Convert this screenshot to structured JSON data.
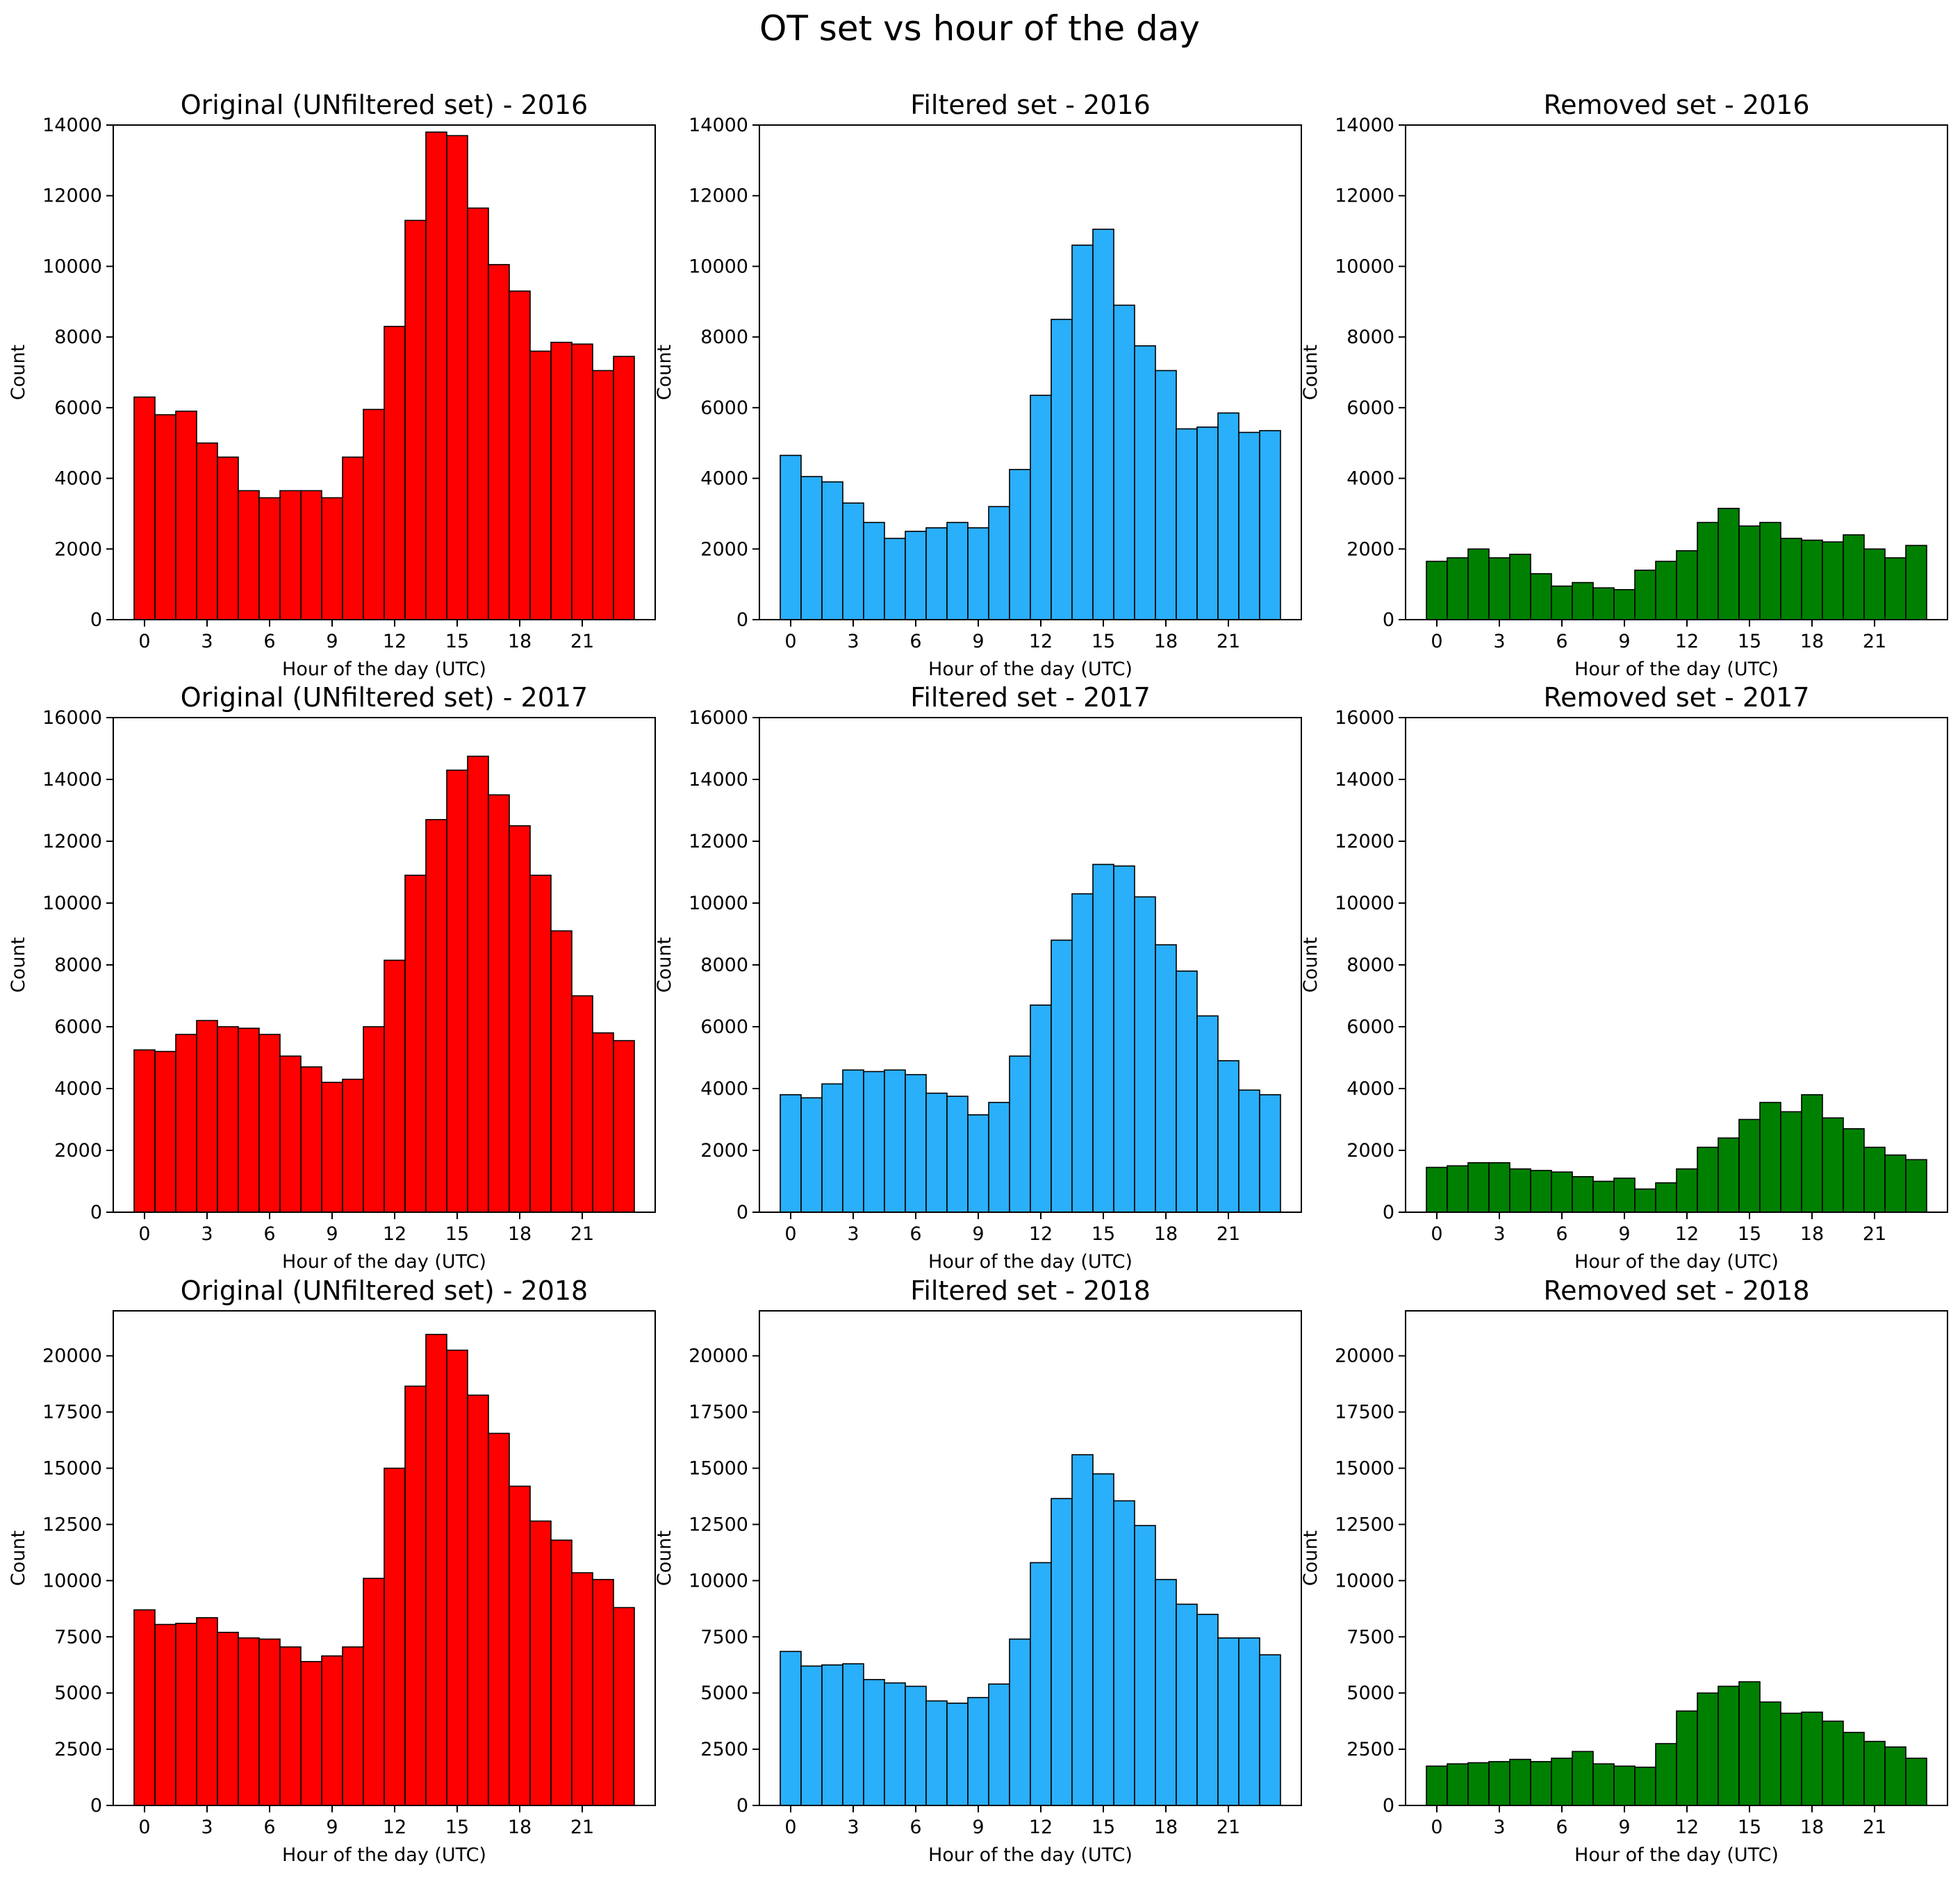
{
  "figure": {
    "title": "OT set vs hour of the day"
  },
  "chart_data": [
    {
      "type": "bar",
      "row": 0,
      "col": 0,
      "title": "Original (UNfiltered set) - 2016",
      "xlabel": "Hour of the day (UTC)",
      "ylabel": "Count",
      "color": "#ff0000",
      "xlim": [
        -1.5,
        24.5
      ],
      "ylim": [
        0,
        14000
      ],
      "xticks": [
        0,
        3,
        6,
        9,
        12,
        15,
        18,
        21
      ],
      "yticks": [
        0,
        2000,
        4000,
        6000,
        8000,
        10000,
        12000,
        14000
      ],
      "x": [
        0,
        1,
        2,
        3,
        4,
        5,
        6,
        7,
        8,
        9,
        10,
        11,
        12,
        13,
        14,
        15,
        16,
        17,
        18,
        19,
        20,
        21,
        22,
        23
      ],
      "values": [
        6300,
        5800,
        5900,
        5000,
        4600,
        3650,
        3450,
        3650,
        3650,
        3450,
        4600,
        5950,
        8300,
        11300,
        13800,
        13700,
        11650,
        10050,
        9300,
        7600,
        7850,
        7800,
        7050,
        7450
      ]
    },
    {
      "type": "bar",
      "row": 0,
      "col": 1,
      "title": "Filtered set - 2016",
      "xlabel": "Hour of the day (UTC)",
      "ylabel": "Count",
      "color": "#2aaffa",
      "xlim": [
        -1.5,
        24.5
      ],
      "ylim": [
        0,
        14000
      ],
      "xticks": [
        0,
        3,
        6,
        9,
        12,
        15,
        18,
        21
      ],
      "yticks": [
        0,
        2000,
        4000,
        6000,
        8000,
        10000,
        12000,
        14000
      ],
      "x": [
        0,
        1,
        2,
        3,
        4,
        5,
        6,
        7,
        8,
        9,
        10,
        11,
        12,
        13,
        14,
        15,
        16,
        17,
        18,
        19,
        20,
        21,
        22,
        23
      ],
      "values": [
        4650,
        4050,
        3900,
        3300,
        2750,
        2300,
        2500,
        2600,
        2750,
        2600,
        3200,
        4250,
        6350,
        8500,
        10600,
        11050,
        8900,
        7750,
        7050,
        5400,
        5450,
        5850,
        5300,
        5350
      ]
    },
    {
      "type": "bar",
      "row": 0,
      "col": 2,
      "title": "Removed set - 2016",
      "xlabel": "Hour of the day (UTC)",
      "ylabel": "Count",
      "color": "#008000",
      "xlim": [
        -1.5,
        24.5
      ],
      "ylim": [
        0,
        14000
      ],
      "xticks": [
        0,
        3,
        6,
        9,
        12,
        15,
        18,
        21
      ],
      "yticks": [
        0,
        2000,
        4000,
        6000,
        8000,
        10000,
        12000,
        14000
      ],
      "x": [
        0,
        1,
        2,
        3,
        4,
        5,
        6,
        7,
        8,
        9,
        10,
        11,
        12,
        13,
        14,
        15,
        16,
        17,
        18,
        19,
        20,
        21,
        22,
        23
      ],
      "values": [
        1650,
        1750,
        2000,
        1750,
        1850,
        1300,
        950,
        1050,
        900,
        850,
        1400,
        1650,
        1950,
        2750,
        3150,
        2650,
        2750,
        2300,
        2250,
        2200,
        2400,
        2000,
        1750,
        2100
      ]
    },
    {
      "type": "bar",
      "row": 1,
      "col": 0,
      "title": "Original (UNfiltered set) - 2017",
      "xlabel": "Hour of the day (UTC)",
      "ylabel": "Count",
      "color": "#ff0000",
      "xlim": [
        -1.5,
        24.5
      ],
      "ylim": [
        0,
        16000
      ],
      "xticks": [
        0,
        3,
        6,
        9,
        12,
        15,
        18,
        21
      ],
      "yticks": [
        0,
        2000,
        4000,
        6000,
        8000,
        10000,
        12000,
        14000,
        16000
      ],
      "x": [
        0,
        1,
        2,
        3,
        4,
        5,
        6,
        7,
        8,
        9,
        10,
        11,
        12,
        13,
        14,
        15,
        16,
        17,
        18,
        19,
        20,
        21,
        22,
        23
      ],
      "values": [
        5250,
        5200,
        5750,
        6200,
        6000,
        5950,
        5750,
        5050,
        4700,
        4200,
        4300,
        6000,
        8150,
        10900,
        12700,
        14300,
        14750,
        13500,
        12500,
        10900,
        9100,
        7000,
        5800,
        5550
      ]
    },
    {
      "type": "bar",
      "row": 1,
      "col": 1,
      "title": "Filtered set - 2017",
      "xlabel": "Hour of the day (UTC)",
      "ylabel": "Count",
      "color": "#2aaffa",
      "xlim": [
        -1.5,
        24.5
      ],
      "ylim": [
        0,
        16000
      ],
      "xticks": [
        0,
        3,
        6,
        9,
        12,
        15,
        18,
        21
      ],
      "yticks": [
        0,
        2000,
        4000,
        6000,
        8000,
        10000,
        12000,
        14000,
        16000
      ],
      "x": [
        0,
        1,
        2,
        3,
        4,
        5,
        6,
        7,
        8,
        9,
        10,
        11,
        12,
        13,
        14,
        15,
        16,
        17,
        18,
        19,
        20,
        21,
        22,
        23
      ],
      "values": [
        3800,
        3700,
        4150,
        4600,
        4550,
        4600,
        4450,
        3850,
        3750,
        3150,
        3550,
        5050,
        6700,
        8800,
        10300,
        11250,
        11200,
        10200,
        8650,
        7800,
        6350,
        4900,
        3950,
        3800
      ]
    },
    {
      "type": "bar",
      "row": 1,
      "col": 2,
      "title": "Removed set - 2017",
      "xlabel": "Hour of the day (UTC)",
      "ylabel": "Count",
      "color": "#008000",
      "xlim": [
        -1.5,
        24.5
      ],
      "ylim": [
        0,
        16000
      ],
      "xticks": [
        0,
        3,
        6,
        9,
        12,
        15,
        18,
        21
      ],
      "yticks": [
        0,
        2000,
        4000,
        6000,
        8000,
        10000,
        12000,
        14000,
        16000
      ],
      "x": [
        0,
        1,
        2,
        3,
        4,
        5,
        6,
        7,
        8,
        9,
        10,
        11,
        12,
        13,
        14,
        15,
        16,
        17,
        18,
        19,
        20,
        21,
        22,
        23
      ],
      "values": [
        1450,
        1500,
        1600,
        1600,
        1400,
        1350,
        1300,
        1150,
        1000,
        1100,
        750,
        950,
        1400,
        2100,
        2400,
        3000,
        3550,
        3250,
        3800,
        3050,
        2700,
        2100,
        1850,
        1700
      ]
    },
    {
      "type": "bar",
      "row": 2,
      "col": 0,
      "title": "Original (UNfiltered set) - 2018",
      "xlabel": "Hour of the day (UTC)",
      "ylabel": "Count",
      "color": "#ff0000",
      "xlim": [
        -1.5,
        24.5
      ],
      "ylim": [
        0,
        22000
      ],
      "xticks": [
        0,
        3,
        6,
        9,
        12,
        15,
        18,
        21
      ],
      "yticks": [
        0,
        2500,
        5000,
        7500,
        10000,
        12500,
        15000,
        17500,
        20000
      ],
      "x": [
        0,
        1,
        2,
        3,
        4,
        5,
        6,
        7,
        8,
        9,
        10,
        11,
        12,
        13,
        14,
        15,
        16,
        17,
        18,
        19,
        20,
        21,
        22,
        23
      ],
      "values": [
        8700,
        8050,
        8100,
        8350,
        7700,
        7450,
        7400,
        7050,
        6400,
        6650,
        7050,
        10100,
        15000,
        18650,
        20950,
        20250,
        18250,
        16550,
        14200,
        12650,
        11800,
        10350,
        10050,
        8800
      ]
    },
    {
      "type": "bar",
      "row": 2,
      "col": 1,
      "title": "Filtered set - 2018",
      "xlabel": "Hour of the day (UTC)",
      "ylabel": "Count",
      "color": "#2aaffa",
      "xlim": [
        -1.5,
        24.5
      ],
      "ylim": [
        0,
        22000
      ],
      "xticks": [
        0,
        3,
        6,
        9,
        12,
        15,
        18,
        21
      ],
      "yticks": [
        0,
        2500,
        5000,
        7500,
        10000,
        12500,
        15000,
        17500,
        20000
      ],
      "x": [
        0,
        1,
        2,
        3,
        4,
        5,
        6,
        7,
        8,
        9,
        10,
        11,
        12,
        13,
        14,
        15,
        16,
        17,
        18,
        19,
        20,
        21,
        22,
        23
      ],
      "values": [
        6850,
        6200,
        6250,
        6300,
        5600,
        5450,
        5300,
        4650,
        4550,
        4800,
        5400,
        7400,
        10800,
        13650,
        15600,
        14750,
        13550,
        12450,
        10050,
        8950,
        8500,
        7450,
        7450,
        6700
      ]
    },
    {
      "type": "bar",
      "row": 2,
      "col": 2,
      "title": "Removed set - 2018",
      "xlabel": "Hour of the day (UTC)",
      "ylabel": "Count",
      "color": "#008000",
      "xlim": [
        -1.5,
        24.5
      ],
      "ylim": [
        0,
        22000
      ],
      "xticks": [
        0,
        3,
        6,
        9,
        12,
        15,
        18,
        21
      ],
      "yticks": [
        0,
        2500,
        5000,
        7500,
        10000,
        12500,
        15000,
        17500,
        20000
      ],
      "x": [
        0,
        1,
        2,
        3,
        4,
        5,
        6,
        7,
        8,
        9,
        10,
        11,
        12,
        13,
        14,
        15,
        16,
        17,
        18,
        19,
        20,
        21,
        22,
        23
      ],
      "values": [
        1750,
        1850,
        1900,
        1950,
        2050,
        1950,
        2100,
        2400,
        1850,
        1750,
        1700,
        2750,
        4200,
        5000,
        5300,
        5500,
        4600,
        4100,
        4150,
        3750,
        3250,
        2850,
        2600,
        2100
      ]
    }
  ]
}
